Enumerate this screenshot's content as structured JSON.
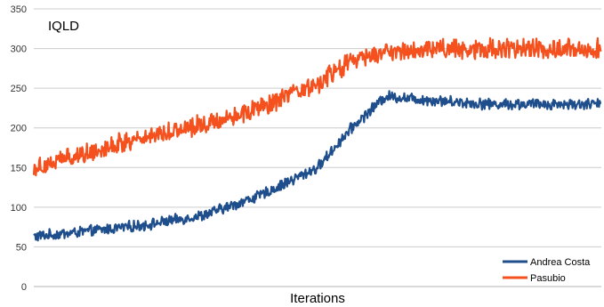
{
  "chart_data": {
    "type": "line",
    "title": "IQLD",
    "xlabel": "Iterations",
    "ylabel": "",
    "ylim": [
      0,
      350
    ],
    "yticks": [
      "0",
      "50",
      "100",
      "150",
      "200",
      "250",
      "300",
      "350"
    ],
    "grid": true,
    "legend_position": "bottom-right",
    "x_range": [
      0,
      500
    ],
    "series": [
      {
        "name": "Andrea Costa",
        "color": "#1f4e8c",
        "noise": 6,
        "x": [
          0,
          50,
          100,
          150,
          200,
          250,
          280,
          310,
          350,
          400,
          450,
          500
        ],
        "values": [
          63,
          70,
          78,
          90,
          115,
          150,
          200,
          240,
          235,
          230,
          230,
          230
        ]
      },
      {
        "name": "Pasubio",
        "color": "#f4511e",
        "noise": 11,
        "x": [
          0,
          50,
          100,
          150,
          200,
          250,
          280,
          310,
          350,
          400,
          450,
          500
        ],
        "values": [
          150,
          170,
          190,
          205,
          225,
          255,
          285,
          295,
          300,
          300,
          300,
          300
        ]
      }
    ]
  }
}
